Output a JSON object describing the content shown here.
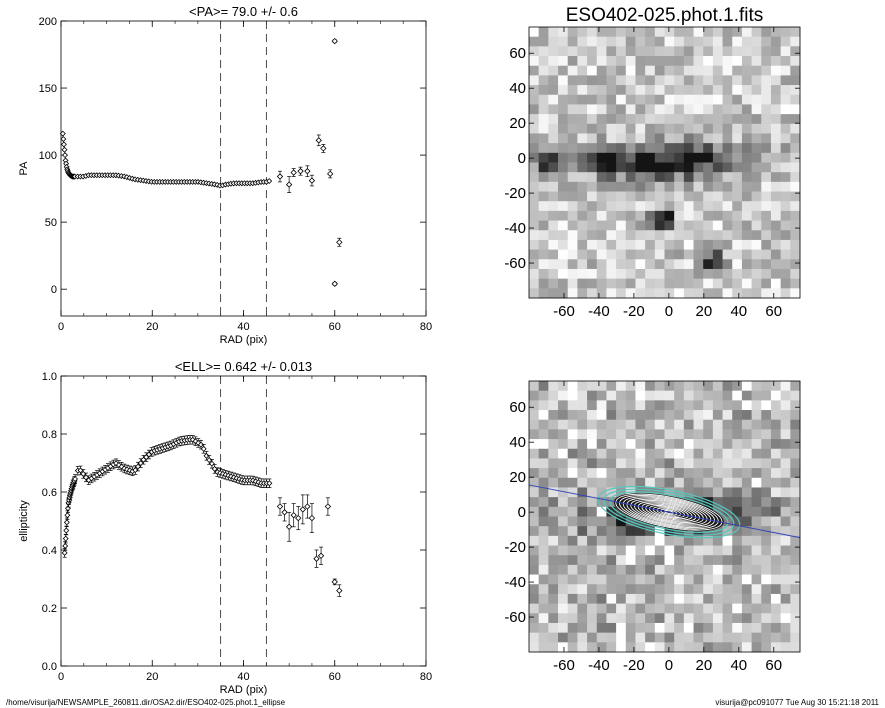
{
  "chart_data": [
    {
      "type": "scatter",
      "title": "<PA>=  79.0 +/-   0.6",
      "xlabel": "RAD (pix)",
      "ylabel": "PA",
      "xlim": [
        0,
        80
      ],
      "ylim": [
        -20,
        200
      ],
      "xticks": [
        "0",
        "20",
        "40",
        "60",
        "80"
      ],
      "yticks": [
        "0",
        "50",
        "100",
        "150",
        "200"
      ],
      "vlines": [
        35,
        45
      ],
      "dense_profile": {
        "x": [
          0.4,
          0.7,
          1,
          1.3,
          1.6,
          2,
          2.5,
          3,
          4,
          5,
          6,
          8,
          10,
          12,
          14,
          16,
          18,
          20,
          22,
          24,
          26,
          28,
          30,
          32,
          34,
          35,
          36,
          38,
          40,
          42,
          44,
          45,
          46
        ],
        "y": [
          116,
          106,
          96,
          90,
          87,
          85,
          84,
          84,
          84,
          84,
          85,
          85,
          85,
          85,
          84,
          82,
          81,
          80,
          80,
          80,
          80,
          80,
          80,
          79,
          78,
          77,
          78,
          79,
          79,
          79,
          80,
          80,
          81
        ]
      },
      "points": [
        {
          "x": 48,
          "y": 84,
          "err": 4
        },
        {
          "x": 50,
          "y": 78,
          "err": 6
        },
        {
          "x": 51,
          "y": 87,
          "err": 3
        },
        {
          "x": 52.5,
          "y": 88,
          "err": 3
        },
        {
          "x": 54,
          "y": 88,
          "err": 4
        },
        {
          "x": 55,
          "y": 81,
          "err": 4
        },
        {
          "x": 56.5,
          "y": 111,
          "err": 4
        },
        {
          "x": 57.5,
          "y": 105,
          "err": 3
        },
        {
          "x": 59,
          "y": 86,
          "err": 3
        },
        {
          "x": 60,
          "y": 185,
          "err": 1
        },
        {
          "x": 60,
          "y": 4,
          "err": 1
        },
        {
          "x": 61,
          "y": 35,
          "err": 3
        }
      ]
    },
    {
      "type": "scatter",
      "title": "<ELL>= 0.642 +/-  0.013",
      "xlabel": "RAD (pix)",
      "ylabel": "ellipticity",
      "xlim": [
        0,
        80
      ],
      "ylim": [
        0.0,
        1.0
      ],
      "xticks": [
        "0",
        "20",
        "40",
        "60",
        "80"
      ],
      "yticks": [
        "0.0",
        "0.2",
        "0.4",
        "0.6",
        "0.8",
        "1.0"
      ],
      "vlines": [
        35,
        45
      ],
      "dense_profile": {
        "x": [
          0.8,
          1,
          1.3,
          1.6,
          2,
          2.5,
          3,
          3.5,
          4,
          5,
          6,
          7,
          8,
          10,
          12,
          14,
          16,
          18,
          20,
          22,
          24,
          26,
          28,
          29,
          30,
          31,
          32,
          33,
          34,
          36,
          38,
          40,
          42,
          44,
          45,
          46
        ],
        "y": [
          0.39,
          0.43,
          0.5,
          0.56,
          0.59,
          0.62,
          0.64,
          0.67,
          0.68,
          0.66,
          0.64,
          0.65,
          0.66,
          0.68,
          0.7,
          0.68,
          0.67,
          0.71,
          0.74,
          0.75,
          0.76,
          0.775,
          0.78,
          0.78,
          0.77,
          0.76,
          0.72,
          0.7,
          0.67,
          0.66,
          0.65,
          0.64,
          0.64,
          0.63,
          0.63,
          0.63
        ],
        "err": 0.015
      },
      "points": [
        {
          "x": 48,
          "y": 0.55,
          "err": 0.03
        },
        {
          "x": 49,
          "y": 0.53,
          "err": 0.03
        },
        {
          "x": 50,
          "y": 0.48,
          "err": 0.05
        },
        {
          "x": 51,
          "y": 0.52,
          "err": 0.04
        },
        {
          "x": 52,
          "y": 0.51,
          "err": 0.04
        },
        {
          "x": 53,
          "y": 0.54,
          "err": 0.05
        },
        {
          "x": 54,
          "y": 0.55,
          "err": 0.04
        },
        {
          "x": 55,
          "y": 0.51,
          "err": 0.05
        },
        {
          "x": 56,
          "y": 0.37,
          "err": 0.03
        },
        {
          "x": 57,
          "y": 0.38,
          "err": 0.03
        },
        {
          "x": 58.5,
          "y": 0.55,
          "err": 0.03
        },
        {
          "x": 60,
          "y": 0.29,
          "err": 0.01
        },
        {
          "x": 61,
          "y": 0.26,
          "err": 0.02
        }
      ]
    },
    {
      "type": "heatmap",
      "title": "ESO402-025.phot.1.fits",
      "xlim": [
        -80,
        75
      ],
      "ylim": [
        -80,
        75
      ],
      "xticks": [
        "-60",
        "-40",
        "-20",
        "0",
        "20",
        "40",
        "60"
      ],
      "yticks": [
        "60",
        "40",
        "20",
        "0",
        "-20",
        "-40",
        "-60"
      ],
      "grid_size": 28,
      "colormap": "inverted grayscale",
      "sources": [
        {
          "x": -70,
          "y": -4
        },
        {
          "x": -35,
          "y": 0
        },
        {
          "x": -3,
          "y": -35
        },
        {
          "x": 25,
          "y": -60
        }
      ]
    },
    {
      "type": "heatmap",
      "title": "",
      "xlim": [
        -80,
        75
      ],
      "ylim": [
        -80,
        75
      ],
      "xticks": [
        "-60",
        "-40",
        "-20",
        "0",
        "20",
        "40",
        "60"
      ],
      "yticks": [
        "60",
        "40",
        "20",
        "0",
        "-20",
        "-40",
        "-60"
      ],
      "grid_size": 28,
      "colormap": "inverted grayscale",
      "overlay": {
        "ellipse_center": [
          0,
          0
        ],
        "pa_line_color": "#3344bb",
        "ellipse_colors": [
          "#ffffff",
          "#55c8c0",
          "#222222"
        ]
      }
    }
  ],
  "footer": {
    "left": "/home/visurija/NEWSAMPLE_260811.dir/OSA2.dir/ESO402-025.phot.1_ellipse",
    "right": "visurija@pc091077  Tue Aug 30 15:21:18 2011"
  }
}
